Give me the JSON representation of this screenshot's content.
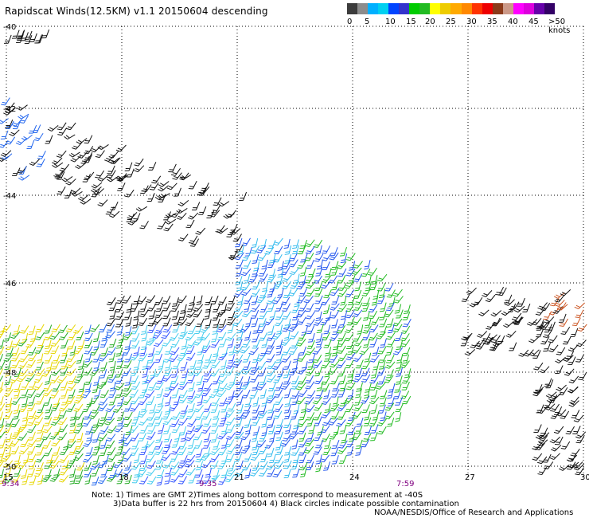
{
  "title": "Rapidscat Winds(12.5KM) v1.1 20150604 descending",
  "colorbar": {
    "colors": [
      "#3c3c3c",
      "#8c8c8c",
      "#00b0ff",
      "#00d0f0",
      "#0044ff",
      "#3333cc",
      "#00cc00",
      "#22bb22",
      "#ffff00",
      "#eecc00",
      "#ffaa00",
      "#ff8800",
      "#ff3300",
      "#ee0000",
      "#8b3a1a",
      "#cc9988",
      "#ff00ff",
      "#dd00dd",
      "#6600aa",
      "#330066"
    ],
    "labels": [
      "0",
      "5",
      "10",
      "15",
      "20",
      "25",
      "30",
      "35",
      "40",
      "45",
      ">50 knots"
    ]
  },
  "lat_labels": [
    "-40",
    "-42",
    "-44",
    "-46",
    "-48",
    "-50"
  ],
  "lon_labels": [
    "15",
    "18",
    "21",
    "24",
    "27",
    "30"
  ],
  "time_labels": [
    "9:34",
    "9:35",
    "7:59"
  ],
  "notes": {
    "line1": "Note: 1) Times are GMT 2)Times along bottom correspond to measurement at -40S",
    "line2": "3)Data buffer is 22 hrs from 20150604 4) Black circles indicate possible contamination",
    "credit": "NOAA/NESDIS/Office of Research and Applications"
  }
}
